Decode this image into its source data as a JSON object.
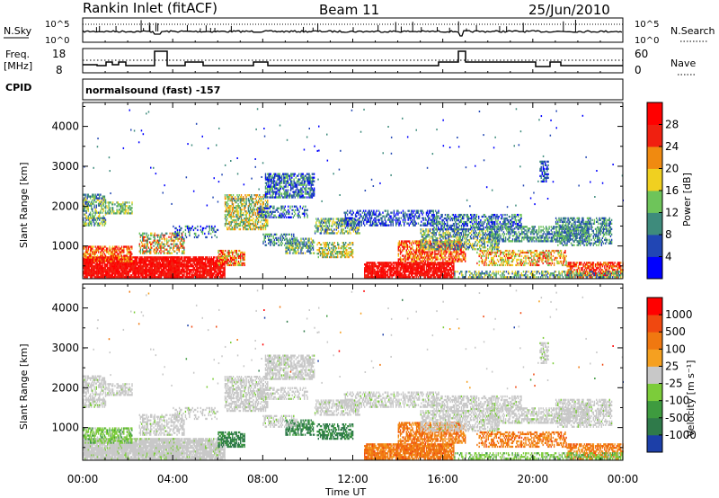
{
  "header": {
    "title": "Rankin Inlet (fitACF)",
    "beam": "Beam 11",
    "date": "25/Jun/2010"
  },
  "summary_panels": {
    "nsky_label": "N.Sky",
    "nsky_ticks": [
      "10^5",
      "10^0"
    ],
    "nsearch_label": "N.Search",
    "nsearch_ticks": [
      "10^5",
      "10^0"
    ],
    "freq_label": "Freq.",
    "freq_unit": "[MHz]",
    "freq_ticks": [
      "18",
      "8"
    ],
    "nave_label": "Nave",
    "nave_ticks": [
      "60",
      "0"
    ],
    "cpid_label": "CPID",
    "cpid_text": "normalsound (fast) -157"
  },
  "chart_data": [
    {
      "type": "heatmap",
      "name": "power-panel",
      "ylabel": "Slant Range [km]",
      "ylim": [
        180,
        4600
      ],
      "yticks": [
        "4000",
        "3000",
        "2000",
        "1000"
      ],
      "xlim": [
        0,
        24
      ],
      "colorbar": {
        "label": "Power [dB]",
        "ticks": [
          "28",
          "24",
          "20",
          "16",
          "12",
          "8",
          "4"
        ],
        "colors": [
          "#0000ff",
          "#2146b4",
          "#3e8b7c",
          "#6ec45a",
          "#f0d020",
          "#f08a10",
          "#f02010",
          "#ff0000"
        ]
      }
    },
    {
      "type": "heatmap",
      "name": "velocity-panel",
      "ylabel": "Slant Range [km]",
      "ylim": [
        180,
        4600
      ],
      "yticks": [
        "4000",
        "3000",
        "2000",
        "1000"
      ],
      "xlim": [
        0,
        24
      ],
      "xlabel": "Time UT",
      "xticks": [
        "00:00",
        "04:00",
        "08:00",
        "12:00",
        "16:00",
        "20:00",
        "00:00"
      ],
      "colorbar": {
        "label": "Velocity [m s⁻¹]",
        "ticks": [
          "1000",
          "500",
          "100",
          "25",
          "-25",
          "-100",
          "-500",
          "-1000"
        ],
        "colors": [
          "#1c3fa8",
          "#2f7a4a",
          "#3e9b3f",
          "#7ccc3a",
          "#c8c8c8",
          "#f5a020",
          "#f07810",
          "#f04810",
          "#ff0000"
        ]
      }
    }
  ],
  "colors": {
    "ground_scatter": "#c8c8c8",
    "text": "#000000",
    "background": "#ffffff"
  }
}
